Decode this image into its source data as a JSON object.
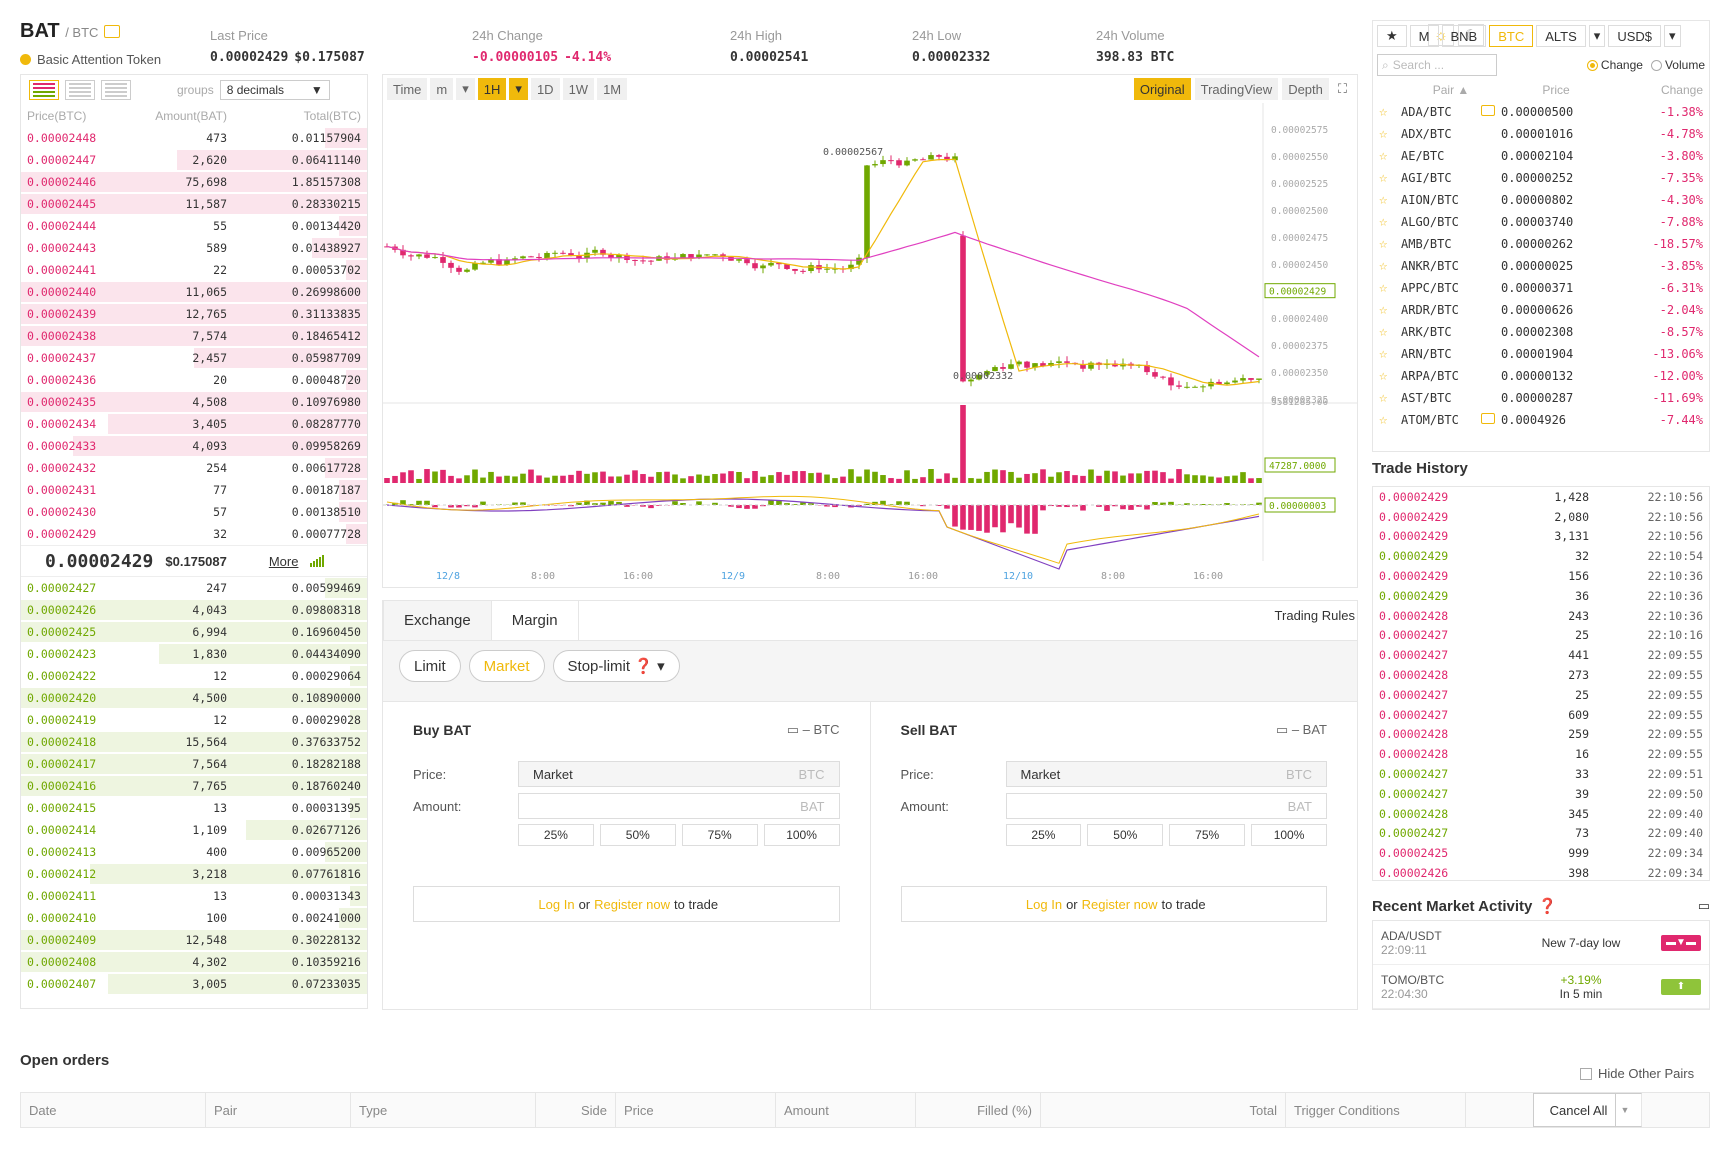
{
  "header": {
    "symbol": "BAT",
    "quote": "/ BTC",
    "full_name": "Basic Attention Token",
    "stats": [
      {
        "label": "Last Price",
        "value": "0.00002429",
        "extra": "$0.175087",
        "color": "normal"
      },
      {
        "label": "24h Change",
        "value": "-0.00000105",
        "extra": "-4.14%",
        "color": "red"
      },
      {
        "label": "24h High",
        "value": "0.00002541",
        "extra": "",
        "color": "normal"
      },
      {
        "label": "24h Low",
        "value": "0.00002332",
        "extra": "",
        "color": "normal"
      },
      {
        "label": "24h Volume",
        "value": "398.83 BTC",
        "extra": "",
        "color": "normal"
      }
    ],
    "theme_light": "☼",
    "theme_dark": "☾"
  },
  "orderbook": {
    "groups_label": "groups",
    "groups_value": "8 decimals",
    "headers": [
      "Price(BTC)",
      "Amount(BAT)",
      "Total(BTC)"
    ],
    "asks": [
      [
        "0.00002448",
        "473",
        "0.01157904",
        0.12
      ],
      [
        "0.00002447",
        "2,620",
        "0.06411140",
        0.55
      ],
      [
        "0.00002446",
        "75,698",
        "1.85157308",
        1.0
      ],
      [
        "0.00002445",
        "11,587",
        "0.28330215",
        1.0
      ],
      [
        "0.00002444",
        "55",
        "0.00134420",
        0.08
      ],
      [
        "0.00002443",
        "589",
        "0.01438927",
        0.16
      ],
      [
        "0.00002441",
        "22",
        "0.00053702",
        0.06
      ],
      [
        "0.00002440",
        "11,065",
        "0.26998600",
        1.0
      ],
      [
        "0.00002439",
        "12,765",
        "0.31133835",
        1.0
      ],
      [
        "0.00002438",
        "7,574",
        "0.18465412",
        1.0
      ],
      [
        "0.00002437",
        "2,457",
        "0.05987709",
        0.5
      ],
      [
        "0.00002436",
        "20",
        "0.00048720",
        0.06
      ],
      [
        "0.00002435",
        "4,508",
        "0.10976980",
        1.0
      ],
      [
        "0.00002434",
        "3,405",
        "0.08287770",
        0.75
      ],
      [
        "0.00002433",
        "4,093",
        "0.09958269",
        0.85
      ],
      [
        "0.00002432",
        "254",
        "0.00617728",
        0.12
      ],
      [
        "0.00002431",
        "77",
        "0.00187187",
        0.08
      ],
      [
        "0.00002430",
        "57",
        "0.00138510",
        0.08
      ],
      [
        "0.00002429",
        "32",
        "0.00077728",
        0.06
      ]
    ],
    "last_price": "0.00002429",
    "last_usd": "$0.175087",
    "more": "More",
    "bids": [
      [
        "0.00002427",
        "247",
        "0.00599469",
        0.12
      ],
      [
        "0.00002426",
        "4,043",
        "0.09808318",
        1.0
      ],
      [
        "0.00002425",
        "6,994",
        "0.16960450",
        1.0
      ],
      [
        "0.00002423",
        "1,830",
        "0.04434090",
        0.6
      ],
      [
        "0.00002422",
        "12",
        "0.00029064",
        0.05
      ],
      [
        "0.00002420",
        "4,500",
        "0.10890000",
        1.0
      ],
      [
        "0.00002419",
        "12",
        "0.00029028",
        0.05
      ],
      [
        "0.00002418",
        "15,564",
        "0.37633752",
        1.0
      ],
      [
        "0.00002417",
        "7,564",
        "0.18282188",
        1.0
      ],
      [
        "0.00002416",
        "7,765",
        "0.18760240",
        1.0
      ],
      [
        "0.00002415",
        "13",
        "0.00031395",
        0.05
      ],
      [
        "0.00002414",
        "1,109",
        "0.02677126",
        0.35
      ],
      [
        "0.00002413",
        "400",
        "0.00965200",
        0.12
      ],
      [
        "0.00002412",
        "3,218",
        "0.07761816",
        0.8
      ],
      [
        "0.00002411",
        "13",
        "0.00031343",
        0.05
      ],
      [
        "0.00002410",
        "100",
        "0.00241000",
        0.08
      ],
      [
        "0.00002409",
        "12,548",
        "0.30228132",
        1.0
      ],
      [
        "0.00002408",
        "4,302",
        "0.10359216",
        1.0
      ],
      [
        "0.00002407",
        "3,005",
        "0.07233035",
        0.75
      ]
    ]
  },
  "chart": {
    "time_label": "Time",
    "intervals": [
      "m",
      "1H",
      "1D",
      "1W",
      "1M"
    ],
    "active_interval": "1H",
    "views": [
      "Original",
      "TradingView",
      "Depth"
    ],
    "active_view": "Original",
    "price_ticks": [
      "0.00002575",
      "0.00002550",
      "0.00002525",
      "0.00002500",
      "0.00002475",
      "0.00002450",
      "0.00002425",
      "0.00002400",
      "0.00002375",
      "0.00002350",
      "0.00002325"
    ],
    "vol_tick": "5581285.00",
    "high_label": "0.00002567",
    "low_label": "0.00002332",
    "current_price": "0.00002429",
    "vol_value": "47287.0000",
    "macd_value": "0.00000003",
    "x_ticks": [
      "12/8",
      "8:00",
      "16:00",
      "12/9",
      "8:00",
      "16:00",
      "12/10",
      "8:00",
      "16:00"
    ],
    "colors": {
      "up": "#70a800",
      "down": "#e0286e",
      "ma1": "#f0b90b",
      "ma2": "#e040c0",
      "macd": "#8040c0"
    }
  },
  "trade": {
    "tabs": [
      "Exchange",
      "Margin"
    ],
    "rules": "Trading Rules",
    "order_types": [
      "Limit",
      "Market",
      "Stop-limit"
    ],
    "active_type": "Market",
    "buy": {
      "title": "Buy BAT",
      "wallet": "– BTC",
      "price_label": "Price:",
      "price_value": "Market",
      "price_unit": "BTC",
      "amount_label": "Amount:",
      "amount_unit": "BAT"
    },
    "sell": {
      "title": "Sell BAT",
      "wallet": "– BAT",
      "price_label": "Price:",
      "price_value": "Market",
      "price_unit": "BTC",
      "amount_label": "Amount:",
      "amount_unit": "BAT"
    },
    "pcts": [
      "25%",
      "50%",
      "75%",
      "100%"
    ],
    "login": "Log In",
    "or": "or",
    "register": "Register now",
    "to_trade": "to trade"
  },
  "markets": {
    "tabs": [
      "★",
      "M",
      "BNB",
      "BTC",
      "ALTS",
      "▾",
      "USD$",
      "▾"
    ],
    "active_tab": "BTC",
    "search_placeholder": "Search ...",
    "radio_change": "Change",
    "radio_volume": "Volume",
    "headers": [
      "Pair ▲",
      "Price",
      "Change"
    ],
    "rows": [
      [
        "ADA/BTC",
        "0.00000500",
        "-1.38%",
        true
      ],
      [
        "ADX/BTC",
        "0.00001016",
        "-4.78%",
        false
      ],
      [
        "AE/BTC",
        "0.00002104",
        "-3.80%",
        false
      ],
      [
        "AGI/BTC",
        "0.00000252",
        "-7.35%",
        false
      ],
      [
        "AION/BTC",
        "0.00000802",
        "-4.30%",
        false
      ],
      [
        "ALGO/BTC",
        "0.00003740",
        "-7.88%",
        false
      ],
      [
        "AMB/BTC",
        "0.00000262",
        "-18.57%",
        false
      ],
      [
        "ANKR/BTC",
        "0.00000025",
        "-3.85%",
        false
      ],
      [
        "APPC/BTC",
        "0.00000371",
        "-6.31%",
        false
      ],
      [
        "ARDR/BTC",
        "0.00000626",
        "-2.04%",
        false
      ],
      [
        "ARK/BTC",
        "0.00002308",
        "-8.57%",
        false
      ],
      [
        "ARN/BTC",
        "0.00001904",
        "-13.06%",
        false
      ],
      [
        "ARPA/BTC",
        "0.00000132",
        "-12.00%",
        false
      ],
      [
        "AST/BTC",
        "0.00000287",
        "-11.69%",
        false
      ],
      [
        "ATOM/BTC",
        "0.0004926",
        "-7.44%",
        true
      ]
    ]
  },
  "trade_history": {
    "title": "Trade History",
    "rows": [
      [
        "0.00002429",
        "1,428",
        "22:10:56",
        "r"
      ],
      [
        "0.00002429",
        "2,080",
        "22:10:56",
        "r"
      ],
      [
        "0.00002429",
        "3,131",
        "22:10:56",
        "r"
      ],
      [
        "0.00002429",
        "32",
        "22:10:54",
        "g"
      ],
      [
        "0.00002429",
        "156",
        "22:10:36",
        "r"
      ],
      [
        "0.00002429",
        "36",
        "22:10:36",
        "g"
      ],
      [
        "0.00002428",
        "243",
        "22:10:36",
        "r"
      ],
      [
        "0.00002427",
        "25",
        "22:10:16",
        "r"
      ],
      [
        "0.00002427",
        "441",
        "22:09:55",
        "r"
      ],
      [
        "0.00002428",
        "273",
        "22:09:55",
        "r"
      ],
      [
        "0.00002427",
        "25",
        "22:09:55",
        "r"
      ],
      [
        "0.00002427",
        "609",
        "22:09:55",
        "r"
      ],
      [
        "0.00002428",
        "259",
        "22:09:55",
        "r"
      ],
      [
        "0.00002428",
        "16",
        "22:09:55",
        "r"
      ],
      [
        "0.00002427",
        "33",
        "22:09:51",
        "g"
      ],
      [
        "0.00002427",
        "39",
        "22:09:50",
        "g"
      ],
      [
        "0.00002428",
        "345",
        "22:09:40",
        "g"
      ],
      [
        "0.00002427",
        "73",
        "22:09:40",
        "g"
      ],
      [
        "0.00002425",
        "999",
        "22:09:34",
        "r"
      ],
      [
        "0.00002426",
        "398",
        "22:09:34",
        "r"
      ]
    ]
  },
  "activity": {
    "title": "Recent Market Activity",
    "rows": [
      {
        "pair": "ADA/USDT",
        "time": "22:09:11",
        "desc": "New 7-day low",
        "sub": "",
        "color": "#e0286e"
      },
      {
        "pair": "TOMO/BTC",
        "time": "22:04:30",
        "desc": "+3.19%",
        "sub": "In 5 min",
        "color": "#8fc43a"
      }
    ]
  },
  "open_orders": {
    "title": "Open orders",
    "hide_other": "Hide Other Pairs",
    "columns": [
      "Date",
      "Pair",
      "Type",
      "Side",
      "Price",
      "Amount",
      "Filled (%)",
      "Total",
      "Trigger Conditions"
    ],
    "cancel_all": "Cancel All"
  }
}
